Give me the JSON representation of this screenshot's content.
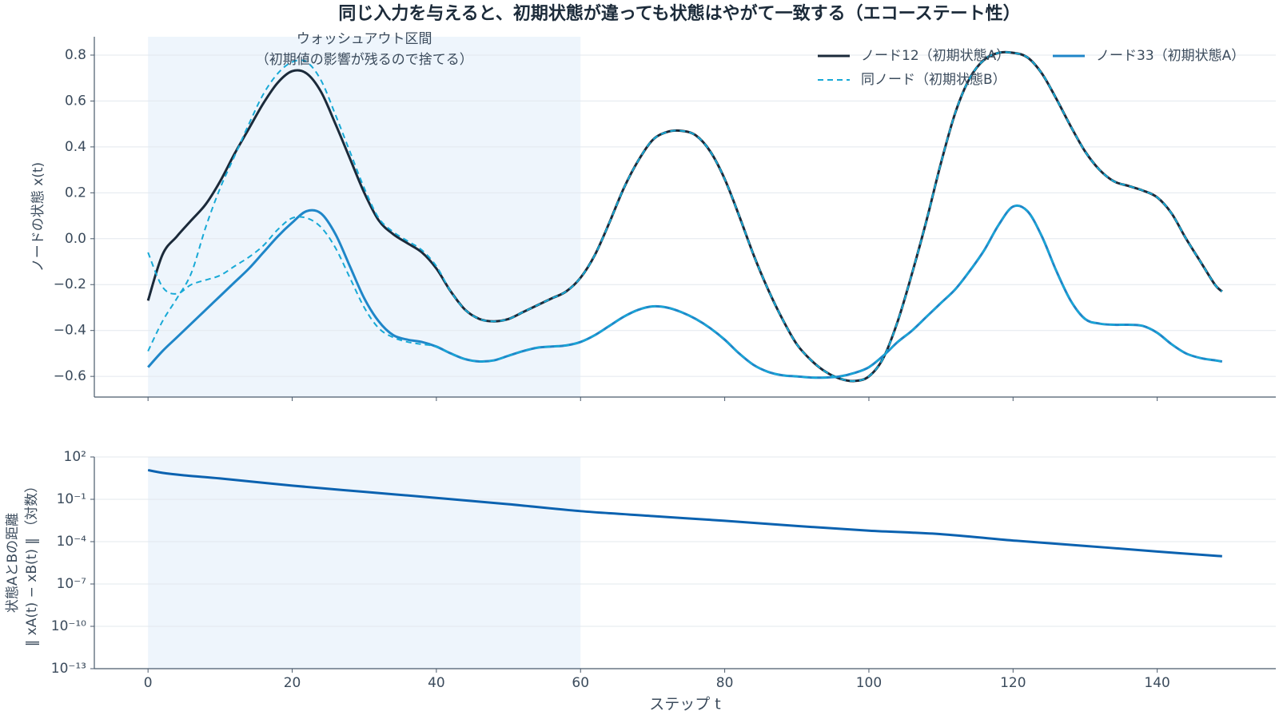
{
  "title": "同じ入力を与えると、初期状態が違っても状態はやがて一致する（エコーステート性）",
  "chart_data": [
    {
      "type": "line",
      "ylabel": "ノードの状態 x(t)",
      "annotation": [
        "ウォッシュアウト区間",
        "（初期値の影響が残るので捨てる）"
      ],
      "shade_x": [
        0,
        60
      ],
      "xlim": [
        -7.45,
        156.45
      ],
      "ylim": [
        -0.69,
        0.88
      ],
      "yticks": [
        0.8,
        0.6,
        0.4,
        0.2,
        {
          "value": 0,
          "label": "0.0"
        },
        {
          "value": -0.2,
          "label": "−0.2"
        },
        {
          "value": -0.4,
          "label": "−0.4"
        },
        {
          "value": -0.6,
          "label": "−0.6"
        }
      ],
      "grid": true,
      "legend": "upper right",
      "x": [
        0,
        2,
        4,
        6,
        8,
        10,
        12,
        14,
        16,
        18,
        20,
        22,
        24,
        26,
        28,
        30,
        32,
        34,
        36,
        38,
        40,
        42,
        44,
        46,
        48,
        50,
        52,
        54,
        56,
        58,
        60,
        62,
        64,
        66,
        68,
        70,
        72,
        74,
        76,
        78,
        80,
        82,
        84,
        86,
        88,
        90,
        92,
        94,
        96,
        98,
        100,
        102,
        104,
        106,
        108,
        110,
        112,
        114,
        116,
        118,
        120,
        122,
        124,
        126,
        128,
        130,
        132,
        134,
        136,
        138,
        140,
        142,
        144,
        146,
        148,
        149
      ],
      "series": [
        {
          "name": "ノード12（初期状態A）",
          "color": "#1b2a3a",
          "dash": false,
          "values": [
            -0.27,
            -0.07,
            0.01,
            0.08,
            0.15,
            0.25,
            0.37,
            0.48,
            0.59,
            0.68,
            0.73,
            0.72,
            0.64,
            0.5,
            0.35,
            0.2,
            0.08,
            0.02,
            -0.02,
            -0.06,
            -0.13,
            -0.23,
            -0.31,
            -0.35,
            -0.36,
            -0.35,
            -0.32,
            -0.29,
            -0.26,
            -0.23,
            -0.17,
            -0.07,
            0.07,
            0.22,
            0.34,
            0.43,
            0.465,
            0.47,
            0.45,
            0.38,
            0.26,
            0.1,
            -0.07,
            -0.22,
            -0.35,
            -0.46,
            -0.53,
            -0.58,
            -0.61,
            -0.62,
            -0.6,
            -0.52,
            -0.36,
            -0.15,
            0.08,
            0.33,
            0.55,
            0.7,
            0.78,
            0.81,
            0.81,
            0.79,
            0.72,
            0.61,
            0.49,
            0.38,
            0.3,
            0.25,
            0.23,
            0.21,
            0.18,
            0.11,
            0.0,
            -0.1,
            -0.2,
            -0.23
          ]
        },
        {
          "name": "同ノード（初期状態B）",
          "color": "#17a9d6",
          "dash": true,
          "values": [
            -0.49,
            -0.36,
            -0.26,
            -0.15,
            0.05,
            0.22,
            0.36,
            0.5,
            0.63,
            0.72,
            0.77,
            0.77,
            0.69,
            0.54,
            0.38,
            0.22,
            0.09,
            0.03,
            -0.01,
            -0.05,
            -0.12,
            -0.23,
            -0.31,
            -0.35,
            -0.36,
            -0.35,
            -0.32,
            -0.29,
            -0.26,
            -0.23,
            -0.17,
            -0.07,
            0.07,
            0.22,
            0.34,
            0.43,
            0.465,
            0.47,
            0.45,
            0.38,
            0.26,
            0.1,
            -0.07,
            -0.22,
            -0.35,
            -0.46,
            -0.53,
            -0.58,
            -0.61,
            -0.62,
            -0.6,
            -0.52,
            -0.36,
            -0.15,
            0.08,
            0.33,
            0.55,
            0.7,
            0.78,
            0.81,
            0.81,
            0.79,
            0.72,
            0.61,
            0.49,
            0.38,
            0.3,
            0.25,
            0.23,
            0.21,
            0.18,
            0.11,
            0.0,
            -0.1,
            -0.2,
            -0.23
          ]
        },
        {
          "name": "ノード33（初期状態A）",
          "color": "#1f86c8",
          "dash": false,
          "values": [
            -0.56,
            -0.49,
            -0.43,
            -0.37,
            -0.31,
            -0.25,
            -0.19,
            -0.13,
            -0.06,
            0.01,
            0.07,
            0.12,
            0.11,
            0.02,
            -0.12,
            -0.26,
            -0.36,
            -0.42,
            -0.44,
            -0.45,
            -0.47,
            -0.5,
            -0.525,
            -0.535,
            -0.53,
            -0.51,
            -0.49,
            -0.475,
            -0.47,
            -0.465,
            -0.45,
            -0.42,
            -0.38,
            -0.34,
            -0.31,
            -0.295,
            -0.3,
            -0.32,
            -0.35,
            -0.39,
            -0.44,
            -0.5,
            -0.55,
            -0.58,
            -0.595,
            -0.6,
            -0.605,
            -0.605,
            -0.6,
            -0.585,
            -0.56,
            -0.51,
            -0.45,
            -0.4,
            -0.34,
            -0.28,
            -0.22,
            -0.14,
            -0.05,
            0.06,
            0.14,
            0.12,
            0.01,
            -0.14,
            -0.27,
            -0.35,
            -0.37,
            -0.375,
            -0.375,
            -0.38,
            -0.41,
            -0.46,
            -0.5,
            -0.52,
            -0.53,
            -0.535
          ]
        },
        {
          "color": "#17a9d6",
          "dash": true,
          "values": [
            -0.06,
            -0.21,
            -0.24,
            -0.2,
            -0.18,
            -0.16,
            -0.12,
            -0.08,
            -0.03,
            0.04,
            0.09,
            0.09,
            0.05,
            -0.04,
            -0.17,
            -0.3,
            -0.39,
            -0.43,
            -0.45,
            -0.46,
            -0.47,
            -0.5,
            -0.525,
            -0.535,
            -0.53,
            -0.51,
            -0.49,
            -0.475,
            -0.47,
            -0.465,
            -0.45,
            -0.42,
            -0.38,
            -0.34,
            -0.31,
            -0.295,
            -0.3,
            -0.32,
            -0.35,
            -0.39,
            -0.44,
            -0.5,
            -0.55,
            -0.58,
            -0.595,
            -0.6,
            -0.605,
            -0.605,
            -0.6,
            -0.585,
            -0.56,
            -0.51,
            -0.45,
            -0.4,
            -0.34,
            -0.28,
            -0.22,
            -0.14,
            -0.05,
            0.06,
            0.14,
            0.12,
            0.01,
            -0.14,
            -0.27,
            -0.35,
            -0.37,
            -0.375,
            -0.375,
            -0.38,
            -0.41,
            -0.46,
            -0.5,
            -0.52,
            -0.53,
            -0.535
          ]
        }
      ]
    },
    {
      "type": "line",
      "ylabel": [
        "状態AとBの距離",
        "‖ xA(t) − xB(t) ‖ （対数）"
      ],
      "xlabel": "ステップ t",
      "shade_x": [
        0,
        60
      ],
      "xlim": [
        -7.45,
        156.45
      ],
      "ylim": [
        1e-13,
        100
      ],
      "yscale": "log",
      "xticks": [
        0,
        20,
        40,
        60,
        80,
        100,
        120,
        140
      ],
      "yticks": [
        {
          "value": 100,
          "label": "10²"
        },
        {
          "value": 0.1,
          "label": "10⁻¹"
        },
        {
          "value": 0.0001,
          "label": "10⁻⁴"
        },
        {
          "value": 1e-07,
          "label": "10⁻⁷"
        },
        {
          "value": 1e-10,
          "label": "10⁻¹⁰"
        },
        {
          "value": 1e-13,
          "label": "10⁻¹³"
        }
      ],
      "grid": true,
      "x": [
        0,
        2,
        5,
        10,
        20,
        30,
        40,
        50,
        60,
        70,
        80,
        90,
        100,
        110,
        120,
        130,
        140,
        149
      ],
      "series": [
        {
          "color": "#0b62b0",
          "dash": false,
          "values": [
            11.7,
            7.5,
            5.0,
            3.0,
            0.93,
            0.34,
            0.126,
            0.045,
            0.0145,
            0.0065,
            0.003,
            0.0013,
            0.0006,
            0.00034,
            0.00012,
            5e-05,
            2e-05,
            9.3e-06
          ]
        }
      ]
    }
  ]
}
